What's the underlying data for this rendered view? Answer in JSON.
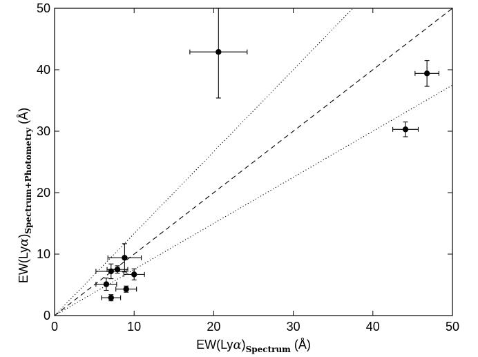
{
  "chart_data": {
    "type": "scatter",
    "title": "",
    "xlabel": {
      "prefix": "EW(Ly",
      "greek": "α",
      "close": ")",
      "subscript": "Spectrum",
      "unit": " (Å)"
    },
    "ylabel": {
      "prefix": "EW(Ly",
      "greek": "α",
      "close": ")",
      "subscript": "Spectrum+Photometry",
      "unit": " (Å)"
    },
    "xlim": [
      0,
      50
    ],
    "ylim": [
      0,
      50
    ],
    "xticks": [
      0,
      10,
      20,
      30,
      40,
      50
    ],
    "yticks": [
      0,
      10,
      20,
      30,
      40,
      50
    ],
    "xtick_labels": [
      "0",
      "10",
      "20",
      "30",
      "40",
      "50"
    ],
    "ytick_labels": [
      "0",
      "10",
      "20",
      "30",
      "40",
      "50"
    ],
    "grid": false,
    "reference_lines": [
      {
        "style": "dashed",
        "slope": 1.0
      },
      {
        "style": "dotted",
        "slope": 1.3333
      },
      {
        "style": "dotted",
        "slope": 0.75
      }
    ],
    "points": [
      {
        "x": 20.6,
        "y": 42.9,
        "xerr": 3.6,
        "yerr_low": 7.5,
        "yerr_high": 7.1
      },
      {
        "x": 46.8,
        "y": 39.4,
        "xerr": 1.5,
        "yerr_low": 2.1,
        "yerr_high": 2.1
      },
      {
        "x": 44.1,
        "y": 30.3,
        "xerr": 1.6,
        "yerr_low": 1.2,
        "yerr_high": 1.2
      },
      {
        "x": 8.8,
        "y": 9.4,
        "xerr": 2.1,
        "yerr_low": 2.3,
        "yerr_high": 2.3
      },
      {
        "x": 7.9,
        "y": 7.5,
        "xerr": 1.3,
        "yerr_low": 0.6,
        "yerr_high": 0.6
      },
      {
        "x": 7.1,
        "y": 7.2,
        "xerr": 1.9,
        "yerr_low": 1.2,
        "yerr_high": 1.2
      },
      {
        "x": 10.0,
        "y": 6.7,
        "xerr": 1.3,
        "yerr_low": 0.9,
        "yerr_high": 0.9
      },
      {
        "x": 6.5,
        "y": 5.1,
        "xerr": 1.3,
        "yerr_low": 1.0,
        "yerr_high": 1.0
      },
      {
        "x": 9.0,
        "y": 4.3,
        "xerr": 1.3,
        "yerr_low": 0.5,
        "yerr_high": 0.5
      },
      {
        "x": 7.1,
        "y": 2.9,
        "xerr": 1.2,
        "yerr_low": 0.5,
        "yerr_high": 0.5
      }
    ]
  }
}
